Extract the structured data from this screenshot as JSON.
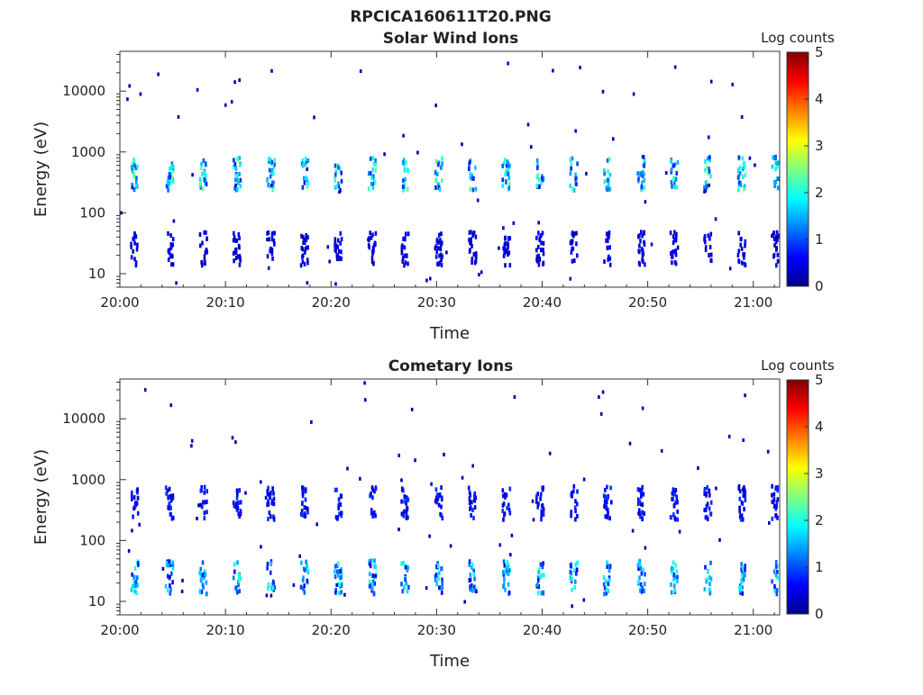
{
  "title": "RPCICA160611T20.PNG",
  "colorbar": {
    "label": "Log counts",
    "ticks": [
      "0",
      "1",
      "2",
      "3",
      "4",
      "5"
    ],
    "range": [
      0,
      5
    ],
    "colormap": "jet",
    "colors": [
      "#00008f",
      "#0000ff",
      "#0080ff",
      "#00ffff",
      "#80ff80",
      "#ffff00",
      "#ff8000",
      "#ff0000",
      "#800000"
    ]
  },
  "chart_data": [
    {
      "type": "heatmap",
      "title": "Solar Wind Ions",
      "xlabel": "Time",
      "ylabel": "Energy (eV)",
      "x_ticks": [
        "20:00",
        "20:10",
        "20:20",
        "20:30",
        "20:40",
        "20:50",
        "21:00"
      ],
      "y_ticks": [
        "10",
        "100",
        "1000",
        "10000"
      ],
      "y_scale": "log",
      "xlim": [
        "20:00",
        "21:02"
      ],
      "ylim": [
        6,
        45000
      ],
      "sweep_times_min": [
        1.3,
        4.6,
        7.8,
        11.0,
        14.2,
        17.4,
        20.6,
        23.8,
        26.9,
        30.1,
        33.3,
        36.5,
        39.7,
        42.9,
        46.1,
        49.3,
        52.4,
        55.6,
        58.8,
        62.0
      ],
      "bands": [
        {
          "name": "main",
          "energy_center_eV": 480,
          "log_counts_peak": 2.3
        },
        {
          "name": "low",
          "energy_center_eV": 28,
          "log_counts_peak": 0.6
        }
      ],
      "colorbar_label": "Log counts"
    },
    {
      "type": "heatmap",
      "title": "Cometary Ions",
      "xlabel": "Time",
      "ylabel": "Energy (eV)",
      "x_ticks": [
        "20:00",
        "20:10",
        "20:20",
        "20:30",
        "20:40",
        "20:50",
        "21:00"
      ],
      "y_ticks": [
        "10",
        "100",
        "1000",
        "10000"
      ],
      "y_scale": "log",
      "xlim": [
        "20:00",
        "21:02"
      ],
      "ylim": [
        6,
        45000
      ],
      "sweep_times_min": [
        1.3,
        4.6,
        7.8,
        11.0,
        14.2,
        17.4,
        20.6,
        23.8,
        26.9,
        30.1,
        33.3,
        36.5,
        39.7,
        42.9,
        46.1,
        49.3,
        52.4,
        55.6,
        58.8,
        62.0
      ],
      "bands": [
        {
          "name": "upper",
          "energy_center_eV": 450,
          "log_counts_peak": 0.9
        },
        {
          "name": "low",
          "energy_center_eV": 27,
          "log_counts_peak": 2.0
        }
      ],
      "colorbar_label": "Log counts"
    }
  ]
}
